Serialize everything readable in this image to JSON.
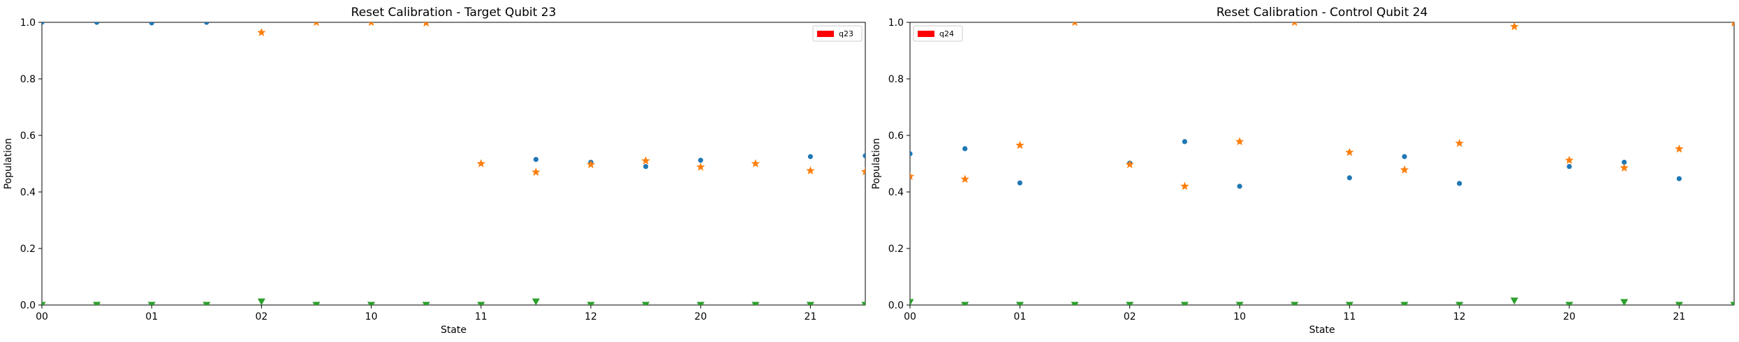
{
  "chart_data": [
    {
      "type": "scatter",
      "title": "Reset Calibration - Target Qubit 23",
      "xlabel": "State",
      "ylabel": "Population",
      "ylim": [
        0,
        1
      ],
      "xlim": [
        0,
        15
      ],
      "x_ticks": [
        {
          "x": 0,
          "label": "00"
        },
        {
          "x": 2,
          "label": "01"
        },
        {
          "x": 4,
          "label": "02"
        },
        {
          "x": 6,
          "label": "10"
        },
        {
          "x": 8,
          "label": "11"
        },
        {
          "x": 10,
          "label": "12"
        },
        {
          "x": 12,
          "label": "20"
        },
        {
          "x": 14,
          "label": "21"
        }
      ],
      "y_ticks": [
        "0.0",
        "0.2",
        "0.4",
        "0.6",
        "0.8",
        "1.0"
      ],
      "grid": false,
      "legend": {
        "position": "top-right",
        "entries": [
          {
            "label": "q23",
            "color": "#ff0000"
          }
        ]
      },
      "x": [
        0,
        1,
        2,
        3,
        4,
        5,
        6,
        7,
        8,
        9,
        10,
        11,
        12,
        13,
        14,
        15
      ],
      "series": [
        {
          "marker": "circle",
          "color": "#1f77b4",
          "values": [
            1.0,
            1.0,
            0.998,
            1.0,
            null,
            null,
            null,
            null,
            null,
            0.515,
            0.505,
            0.49,
            0.512,
            null,
            0.525,
            0.528
          ]
        },
        {
          "marker": "star",
          "color": "#ff7f0e",
          "values": [
            null,
            null,
            null,
            null,
            0.964,
            1.0,
            1.0,
            0.998,
            0.5,
            0.47,
            0.497,
            0.51,
            0.488,
            0.5,
            0.475,
            0.472
          ]
        },
        {
          "marker": "triangle-down",
          "color": "#2ca02c",
          "values": [
            0.0,
            0.0,
            0.0,
            0.0,
            0.012,
            0.0,
            0.0,
            0.0,
            0.0,
            0.012,
            0.0,
            0.0,
            0.0,
            0.0,
            0.0,
            0.0
          ]
        }
      ]
    },
    {
      "type": "scatter",
      "title": "Reset Calibration - Control Qubit 24",
      "xlabel": "State",
      "ylabel": "Population",
      "ylim": [
        0,
        1
      ],
      "xlim": [
        0,
        15
      ],
      "x_ticks": [
        {
          "x": 0,
          "label": "00"
        },
        {
          "x": 2,
          "label": "01"
        },
        {
          "x": 4,
          "label": "02"
        },
        {
          "x": 6,
          "label": "10"
        },
        {
          "x": 8,
          "label": "11"
        },
        {
          "x": 10,
          "label": "12"
        },
        {
          "x": 12,
          "label": "20"
        },
        {
          "x": 14,
          "label": "21"
        }
      ],
      "y_ticks": [
        "0.0",
        "0.2",
        "0.4",
        "0.6",
        "0.8",
        "1.0"
      ],
      "grid": false,
      "legend": {
        "position": "top-left",
        "entries": [
          {
            "label": "q24",
            "color": "#ff0000"
          }
        ]
      },
      "x": [
        0,
        1,
        2,
        3,
        4,
        5,
        6,
        7,
        8,
        9,
        10,
        11,
        12,
        13,
        14,
        15
      ],
      "series": [
        {
          "marker": "circle",
          "color": "#1f77b4",
          "values": [
            0.535,
            0.553,
            0.432,
            null,
            0.502,
            0.578,
            0.42,
            null,
            0.45,
            0.525,
            0.43,
            null,
            0.49,
            0.505,
            0.447,
            null
          ]
        },
        {
          "marker": "star",
          "color": "#ff7f0e",
          "values": [
            0.455,
            0.445,
            0.565,
            1.0,
            0.497,
            0.42,
            0.578,
            1.0,
            0.54,
            0.478,
            0.572,
            0.985,
            0.512,
            0.485,
            0.552,
            0.998
          ]
        },
        {
          "marker": "triangle-down",
          "color": "#2ca02c",
          "values": [
            0.01,
            0.0,
            0.0,
            0.0,
            0.0,
            0.0,
            0.0,
            0.0,
            0.0,
            0.0,
            0.0,
            0.015,
            0.0,
            0.01,
            0.0,
            0.0
          ]
        }
      ]
    }
  ]
}
